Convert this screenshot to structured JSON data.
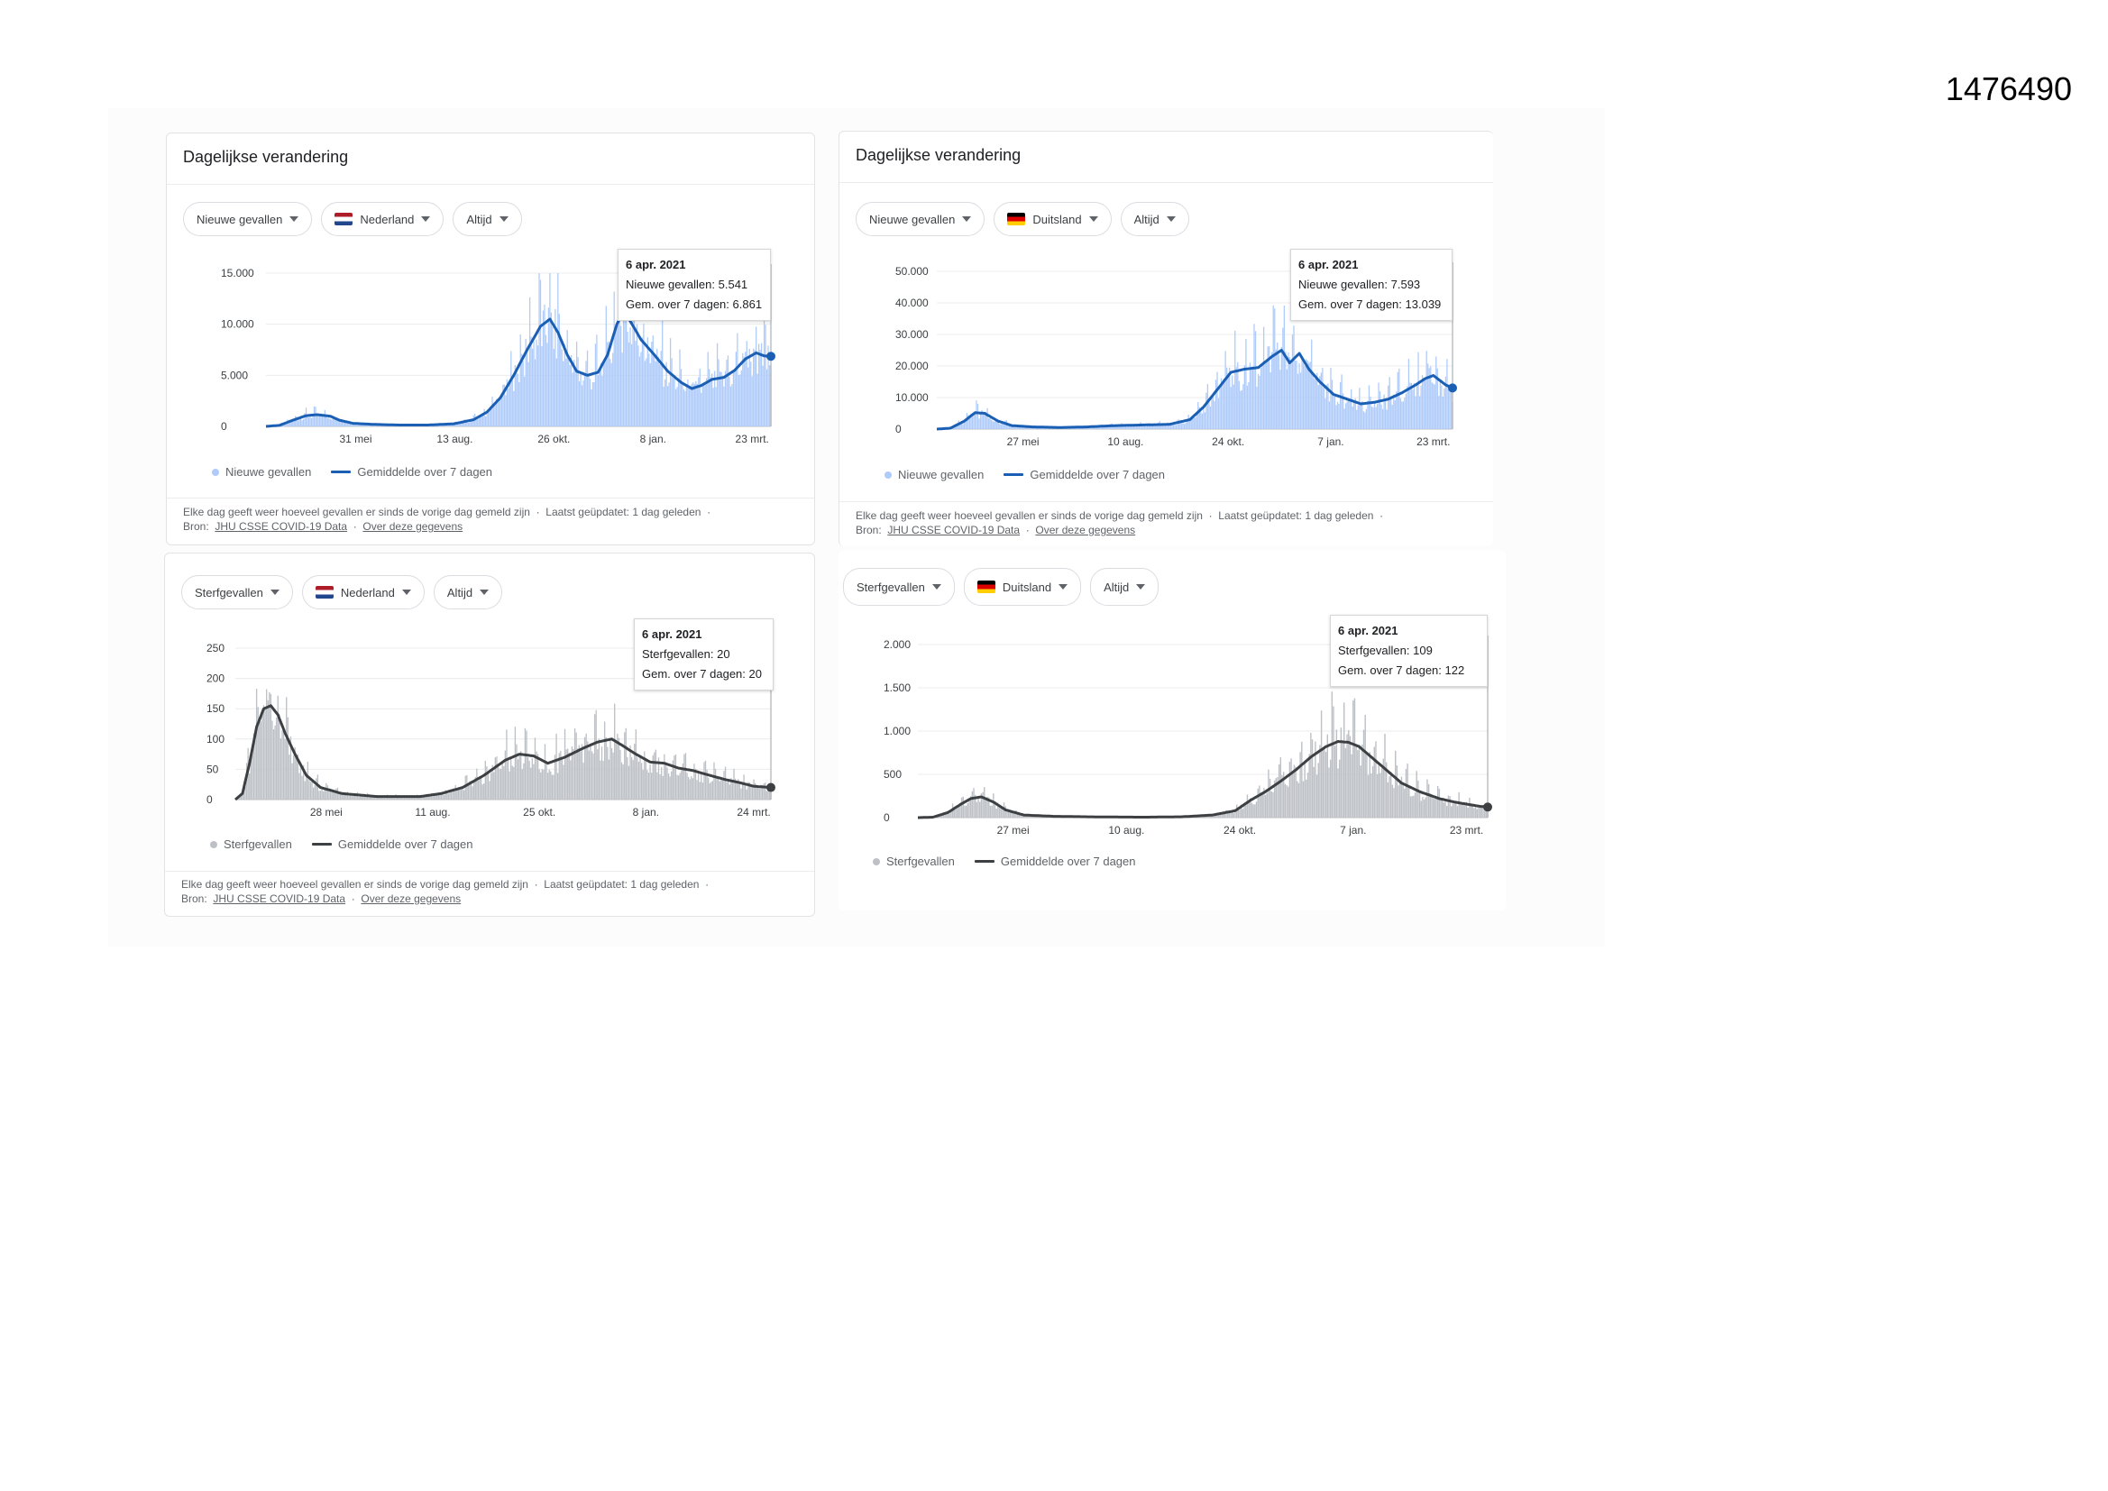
{
  "doc_id": "1476490",
  "footer": {
    "text": "Elke dag geeft weer hoeveel gevallen er sinds de vorige dag gemeld zijn",
    "updated": "Laatst geüpdatet: 1 dag geleden",
    "source_label": "Bron:",
    "source_link": "JHU CSSE COVID-19 Data",
    "about_link": "Over deze gegevens",
    "sep": "·"
  },
  "panels": [
    {
      "title": "Dagelijkse verandering",
      "chips": {
        "metric": "Nieuwe gevallen",
        "country": "Nederland",
        "range": "Altijd"
      },
      "tooltip": {
        "date": "6 apr. 2021",
        "line1": "Nieuwe gevallen: 5.541",
        "line2": "Gem. over 7 dagen: 6.861"
      },
      "legend": {
        "bars": "Nieuwe gevallen",
        "avg": "Gemiddelde over 7 dagen"
      }
    },
    {
      "title": "Dagelijkse verandering",
      "chips": {
        "metric": "Nieuwe gevallen",
        "country": "Duitsland",
        "range": "Altijd"
      },
      "tooltip": {
        "date": "6 apr. 2021",
        "line1": "Nieuwe gevallen: 7.593",
        "line2": "Gem. over 7 dagen: 13.039"
      },
      "legend": {
        "bars": "Nieuwe gevallen",
        "avg": "Gemiddelde over 7 dagen"
      }
    },
    {
      "title": "",
      "chips": {
        "metric": "Sterfgevallen",
        "country": "Nederland",
        "range": "Altijd"
      },
      "tooltip": {
        "date": "6 apr. 2021",
        "line1": "Sterfgevallen: 20",
        "line2": "Gem. over 7 dagen: 20"
      },
      "legend": {
        "bars": "Sterfgevallen",
        "avg": "Gemiddelde over 7 dagen"
      }
    },
    {
      "title": "",
      "chips": {
        "metric": "Sterfgevallen",
        "country": "Duitsland",
        "range": "Altijd"
      },
      "tooltip": {
        "date": "6 apr. 2021",
        "line1": "Sterfgevallen: 109",
        "line2": "Gem. over 7 dagen: 122"
      },
      "legend": {
        "bars": "Sterfgevallen",
        "avg": "Gemiddelde over 7 dagen"
      }
    }
  ],
  "chart_data": [
    {
      "type": "area",
      "title": "Nederland – Nieuwe gevallen",
      "bar_color": "#aecbfa",
      "line_color": "#1a5fb4",
      "ylim": [
        0,
        15000
      ],
      "yticks": [
        0,
        5000,
        10000,
        15000
      ],
      "ytick_labels": [
        "0",
        "5.000",
        "10.000",
        "15.000"
      ],
      "xticks": [
        {
          "day": 67,
          "label": "31 mei"
        },
        {
          "day": 141,
          "label": "13 aug."
        },
        {
          "day": 215,
          "label": "26 okt."
        },
        {
          "day": 289,
          "label": "8 jan."
        },
        {
          "day": 363,
          "label": "23 mrt."
        }
      ],
      "n_days": 378,
      "avg_keyframes": [
        [
          0,
          0
        ],
        [
          10,
          100
        ],
        [
          20,
          600
        ],
        [
          30,
          1050
        ],
        [
          38,
          1150
        ],
        [
          48,
          1000
        ],
        [
          55,
          600
        ],
        [
          65,
          300
        ],
        [
          80,
          200
        ],
        [
          100,
          130
        ],
        [
          120,
          130
        ],
        [
          140,
          250
        ],
        [
          155,
          650
        ],
        [
          165,
          1400
        ],
        [
          175,
          2800
        ],
        [
          185,
          5000
        ],
        [
          195,
          7500
        ],
        [
          205,
          9800
        ],
        [
          212,
          10500
        ],
        [
          218,
          9200
        ],
        [
          225,
          7000
        ],
        [
          232,
          5400
        ],
        [
          240,
          5000
        ],
        [
          248,
          5300
        ],
        [
          255,
          7000
        ],
        [
          262,
          10000
        ],
        [
          267,
          11300
        ],
        [
          272,
          10300
        ],
        [
          280,
          8500
        ],
        [
          290,
          7000
        ],
        [
          300,
          5400
        ],
        [
          310,
          4300
        ],
        [
          318,
          3700
        ],
        [
          325,
          4000
        ],
        [
          333,
          4600
        ],
        [
          342,
          4800
        ],
        [
          350,
          5500
        ],
        [
          358,
          6600
        ],
        [
          366,
          7200
        ],
        [
          372,
          6900
        ],
        [
          377,
          6861
        ]
      ],
      "series": [
        {
          "name": "Nieuwe gevallen"
        },
        {
          "name": "Gemiddelde over 7 dagen"
        }
      ]
    },
    {
      "type": "area",
      "title": "Duitsland – Nieuwe gevallen",
      "bar_color": "#aecbfa",
      "line_color": "#1a5fb4",
      "ylim": [
        0,
        50000
      ],
      "yticks": [
        0,
        10000,
        20000,
        30000,
        40000,
        50000
      ],
      "ytick_labels": [
        "0",
        "10.000",
        "20.000",
        "30.000",
        "40.000",
        "50.000"
      ],
      "xticks": [
        {
          "day": 63,
          "label": "27 mei"
        },
        {
          "day": 138,
          "label": "10 aug."
        },
        {
          "day": 213,
          "label": "24 okt."
        },
        {
          "day": 288,
          "label": "7 jan."
        },
        {
          "day": 363,
          "label": "23 mrt."
        }
      ],
      "n_days": 378,
      "avg_keyframes": [
        [
          0,
          0
        ],
        [
          10,
          300
        ],
        [
          20,
          2500
        ],
        [
          28,
          5200
        ],
        [
          35,
          5000
        ],
        [
          45,
          2500
        ],
        [
          55,
          1100
        ],
        [
          70,
          700
        ],
        [
          90,
          500
        ],
        [
          110,
          700
        ],
        [
          130,
          1100
        ],
        [
          150,
          1300
        ],
        [
          170,
          1500
        ],
        [
          185,
          3000
        ],
        [
          195,
          7000
        ],
        [
          205,
          12500
        ],
        [
          215,
          18000
        ],
        [
          225,
          19000
        ],
        [
          235,
          19500
        ],
        [
          245,
          23000
        ],
        [
          252,
          25000
        ],
        [
          258,
          21000
        ],
        [
          265,
          24000
        ],
        [
          272,
          19000
        ],
        [
          280,
          15000
        ],
        [
          290,
          11000
        ],
        [
          300,
          9500
        ],
        [
          310,
          8000
        ],
        [
          320,
          8500
        ],
        [
          330,
          9500
        ],
        [
          340,
          11500
        ],
        [
          350,
          14000
        ],
        [
          357,
          16000
        ],
        [
          363,
          17000
        ],
        [
          372,
          14000
        ],
        [
          377,
          13039
        ]
      ],
      "series": [
        {
          "name": "Nieuwe gevallen"
        },
        {
          "name": "Gemiddelde over 7 dagen"
        }
      ]
    },
    {
      "type": "area",
      "title": "Nederland – Sterfgevallen",
      "bar_color": "#bdc1c6",
      "line_color": "#3c4043",
      "ylim": [
        0,
        250
      ],
      "yticks": [
        0,
        50,
        100,
        150,
        200,
        250
      ],
      "ytick_labels": [
        "0",
        "50",
        "100",
        "150",
        "200",
        "250"
      ],
      "xticks": [
        {
          "day": 64,
          "label": "28 mei"
        },
        {
          "day": 139,
          "label": "11 aug."
        },
        {
          "day": 214,
          "label": "25 okt."
        },
        {
          "day": 289,
          "label": "8 jan."
        },
        {
          "day": 365,
          "label": "24 mrt."
        }
      ],
      "n_days": 378,
      "avg_keyframes": [
        [
          0,
          0
        ],
        [
          5,
          10
        ],
        [
          10,
          60
        ],
        [
          15,
          120
        ],
        [
          20,
          150
        ],
        [
          25,
          155
        ],
        [
          30,
          140
        ],
        [
          35,
          110
        ],
        [
          42,
          75
        ],
        [
          50,
          40
        ],
        [
          60,
          20
        ],
        [
          75,
          10
        ],
        [
          100,
          5
        ],
        [
          130,
          5
        ],
        [
          145,
          10
        ],
        [
          160,
          20
        ],
        [
          175,
          40
        ],
        [
          190,
          65
        ],
        [
          200,
          75
        ],
        [
          210,
          72
        ],
        [
          220,
          60
        ],
        [
          232,
          70
        ],
        [
          245,
          85
        ],
        [
          255,
          95
        ],
        [
          265,
          100
        ],
        [
          272,
          90
        ],
        [
          282,
          75
        ],
        [
          292,
          62
        ],
        [
          302,
          60
        ],
        [
          312,
          52
        ],
        [
          322,
          48
        ],
        [
          334,
          40
        ],
        [
          345,
          33
        ],
        [
          355,
          28
        ],
        [
          365,
          22
        ],
        [
          377,
          20
        ]
      ],
      "series": [
        {
          "name": "Sterfgevallen"
        },
        {
          "name": "Gemiddelde over 7 dagen"
        }
      ]
    },
    {
      "type": "area",
      "title": "Duitsland – Sterfgevallen",
      "bar_color": "#bdc1c6",
      "line_color": "#3c4043",
      "ylim": [
        0,
        2000
      ],
      "yticks": [
        0,
        500,
        1000,
        1500,
        2000
      ],
      "ytick_labels": [
        "0",
        "500",
        "1.000",
        "1.500",
        "2.000"
      ],
      "xticks": [
        {
          "day": 63,
          "label": "27 mei"
        },
        {
          "day": 138,
          "label": "10 aug."
        },
        {
          "day": 213,
          "label": "24 okt."
        },
        {
          "day": 288,
          "label": "7 jan."
        },
        {
          "day": 363,
          "label": "23 mrt."
        }
      ],
      "n_days": 378,
      "avg_keyframes": [
        [
          0,
          0
        ],
        [
          10,
          5
        ],
        [
          20,
          60
        ],
        [
          28,
          150
        ],
        [
          35,
          220
        ],
        [
          42,
          240
        ],
        [
          50,
          180
        ],
        [
          58,
          90
        ],
        [
          70,
          30
        ],
        [
          90,
          15
        ],
        [
          120,
          8
        ],
        [
          150,
          5
        ],
        [
          175,
          10
        ],
        [
          195,
          30
        ],
        [
          210,
          80
        ],
        [
          220,
          200
        ],
        [
          230,
          300
        ],
        [
          240,
          420
        ],
        [
          250,
          550
        ],
        [
          260,
          700
        ],
        [
          270,
          820
        ],
        [
          278,
          880
        ],
        [
          285,
          870
        ],
        [
          292,
          820
        ],
        [
          300,
          700
        ],
        [
          310,
          550
        ],
        [
          320,
          400
        ],
        [
          332,
          300
        ],
        [
          345,
          220
        ],
        [
          355,
          180
        ],
        [
          365,
          150
        ],
        [
          372,
          130
        ],
        [
          377,
          122
        ]
      ],
      "series": [
        {
          "name": "Sterfgevallen"
        },
        {
          "name": "Gemiddelde over 7 dagen"
        }
      ]
    }
  ]
}
